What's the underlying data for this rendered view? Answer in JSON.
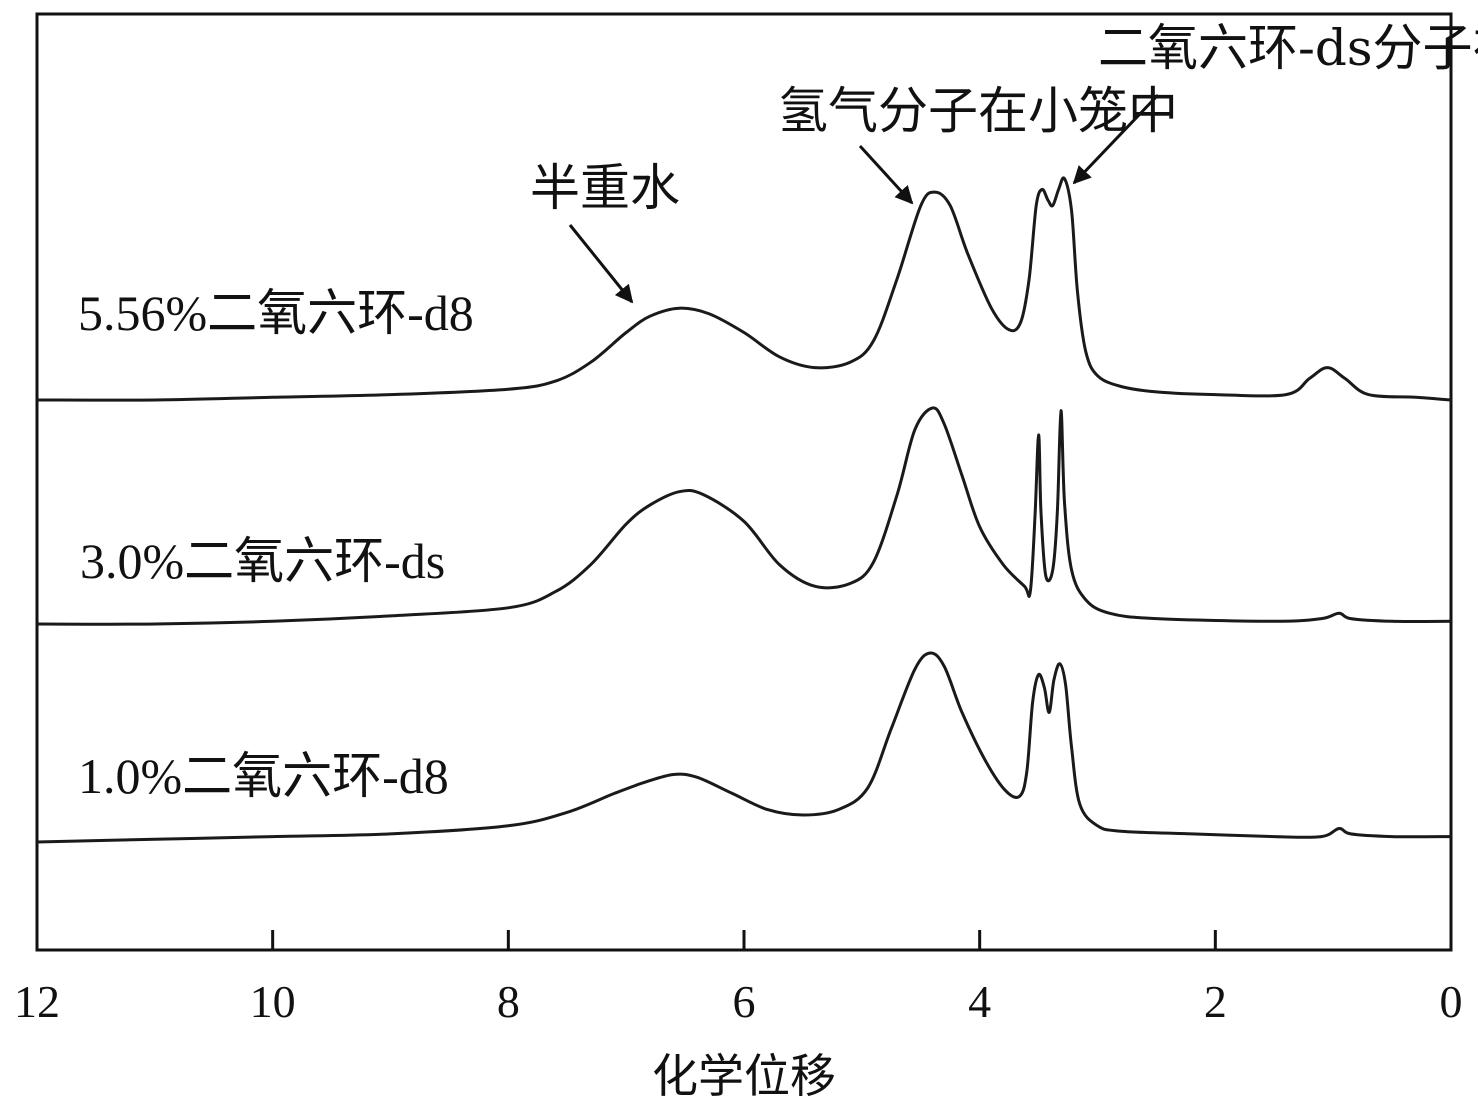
{
  "chart_data": {
    "type": "line",
    "title": "",
    "xlabel": "化学位移",
    "ylabel": "",
    "xlim": [
      12,
      0
    ],
    "x_reversed": true,
    "xticks": [
      "12",
      "10",
      "8",
      "6",
      "4",
      "2",
      "0"
    ],
    "xtick_values": [
      12,
      10,
      8,
      6,
      4,
      2,
      0
    ],
    "grid": false,
    "colors": {
      "line": "#1a1a1a",
      "frame": "#111111"
    },
    "series": [
      {
        "name": "5.56%二氧六环-d8",
        "points": [
          [
            12.0,
            0.0
          ],
          [
            11.0,
            0.0
          ],
          [
            10.0,
            0.01
          ],
          [
            9.0,
            0.02
          ],
          [
            8.0,
            0.04
          ],
          [
            7.6,
            0.07
          ],
          [
            7.3,
            0.14
          ],
          [
            7.0,
            0.25
          ],
          [
            6.8,
            0.31
          ],
          [
            6.55,
            0.34
          ],
          [
            6.3,
            0.32
          ],
          [
            6.0,
            0.25
          ],
          [
            5.7,
            0.16
          ],
          [
            5.4,
            0.12
          ],
          [
            5.1,
            0.14
          ],
          [
            4.9,
            0.22
          ],
          [
            4.7,
            0.45
          ],
          [
            4.5,
            0.72
          ],
          [
            4.38,
            0.77
          ],
          [
            4.25,
            0.72
          ],
          [
            4.1,
            0.54
          ],
          [
            3.9,
            0.34
          ],
          [
            3.75,
            0.26
          ],
          [
            3.65,
            0.29
          ],
          [
            3.58,
            0.45
          ],
          [
            3.52,
            0.72
          ],
          [
            3.47,
            0.78
          ],
          [
            3.42,
            0.74
          ],
          [
            3.38,
            0.72
          ],
          [
            3.33,
            0.78
          ],
          [
            3.28,
            0.82
          ],
          [
            3.22,
            0.7
          ],
          [
            3.17,
            0.4
          ],
          [
            3.1,
            0.18
          ],
          [
            3.0,
            0.09
          ],
          [
            2.8,
            0.05
          ],
          [
            2.5,
            0.03
          ],
          [
            2.0,
            0.02
          ],
          [
            1.4,
            0.02
          ],
          [
            1.2,
            0.08
          ],
          [
            1.05,
            0.12
          ],
          [
            0.9,
            0.08
          ],
          [
            0.7,
            0.02
          ],
          [
            0.3,
            0.01
          ],
          [
            0.0,
            0.0
          ]
        ]
      },
      {
        "name": "3.0%二氧六环-ds",
        "points": [
          [
            12.0,
            0.0
          ],
          [
            11.0,
            0.0
          ],
          [
            10.0,
            0.01
          ],
          [
            9.0,
            0.03
          ],
          [
            8.0,
            0.06
          ],
          [
            7.6,
            0.12
          ],
          [
            7.3,
            0.22
          ],
          [
            7.0,
            0.37
          ],
          [
            6.8,
            0.44
          ],
          [
            6.55,
            0.49
          ],
          [
            6.35,
            0.48
          ],
          [
            6.0,
            0.38
          ],
          [
            5.7,
            0.22
          ],
          [
            5.4,
            0.14
          ],
          [
            5.1,
            0.15
          ],
          [
            4.9,
            0.23
          ],
          [
            4.7,
            0.48
          ],
          [
            4.55,
            0.72
          ],
          [
            4.4,
            0.8
          ],
          [
            4.3,
            0.74
          ],
          [
            4.15,
            0.55
          ],
          [
            4.0,
            0.36
          ],
          [
            3.8,
            0.22
          ],
          [
            3.62,
            0.14
          ],
          [
            3.57,
            0.12
          ],
          [
            3.53,
            0.4
          ],
          [
            3.5,
            0.7
          ],
          [
            3.48,
            0.42
          ],
          [
            3.44,
            0.18
          ],
          [
            3.38,
            0.2
          ],
          [
            3.34,
            0.42
          ],
          [
            3.31,
            0.79
          ],
          [
            3.28,
            0.45
          ],
          [
            3.22,
            0.2
          ],
          [
            3.1,
            0.09
          ],
          [
            2.9,
            0.04
          ],
          [
            2.5,
            0.02
          ],
          [
            1.5,
            0.01
          ],
          [
            1.1,
            0.02
          ],
          [
            0.95,
            0.04
          ],
          [
            0.85,
            0.02
          ],
          [
            0.5,
            0.01
          ],
          [
            0.0,
            0.01
          ]
        ]
      },
      {
        "name": "1.0%二氧六环-d8",
        "points": [
          [
            12.0,
            0.0
          ],
          [
            11.0,
            0.01
          ],
          [
            10.0,
            0.02
          ],
          [
            9.0,
            0.03
          ],
          [
            8.0,
            0.06
          ],
          [
            7.5,
            0.11
          ],
          [
            7.1,
            0.18
          ],
          [
            6.85,
            0.22
          ],
          [
            6.6,
            0.25
          ],
          [
            6.4,
            0.24
          ],
          [
            6.1,
            0.18
          ],
          [
            5.8,
            0.12
          ],
          [
            5.5,
            0.1
          ],
          [
            5.2,
            0.12
          ],
          [
            4.95,
            0.2
          ],
          [
            4.75,
            0.42
          ],
          [
            4.55,
            0.64
          ],
          [
            4.42,
            0.7
          ],
          [
            4.3,
            0.65
          ],
          [
            4.15,
            0.48
          ],
          [
            3.95,
            0.3
          ],
          [
            3.78,
            0.19
          ],
          [
            3.66,
            0.17
          ],
          [
            3.6,
            0.26
          ],
          [
            3.55,
            0.52
          ],
          [
            3.5,
            0.62
          ],
          [
            3.45,
            0.57
          ],
          [
            3.41,
            0.48
          ],
          [
            3.37,
            0.6
          ],
          [
            3.32,
            0.66
          ],
          [
            3.27,
            0.58
          ],
          [
            3.22,
            0.35
          ],
          [
            3.15,
            0.14
          ],
          [
            3.0,
            0.06
          ],
          [
            2.8,
            0.04
          ],
          [
            2.2,
            0.03
          ],
          [
            1.5,
            0.02
          ],
          [
            1.1,
            0.02
          ],
          [
            0.95,
            0.05
          ],
          [
            0.85,
            0.03
          ],
          [
            0.5,
            0.02
          ],
          [
            0.0,
            0.02
          ]
        ]
      }
    ],
    "annotations": [
      {
        "text": "半重水",
        "points_to_x": 6.85
      },
      {
        "text": "氢气分子在小笼中",
        "points_to_x": 4.5
      },
      {
        "text": "二氧六环-ds分子在大笼中",
        "points_to_x": 3.3
      }
    ]
  }
}
